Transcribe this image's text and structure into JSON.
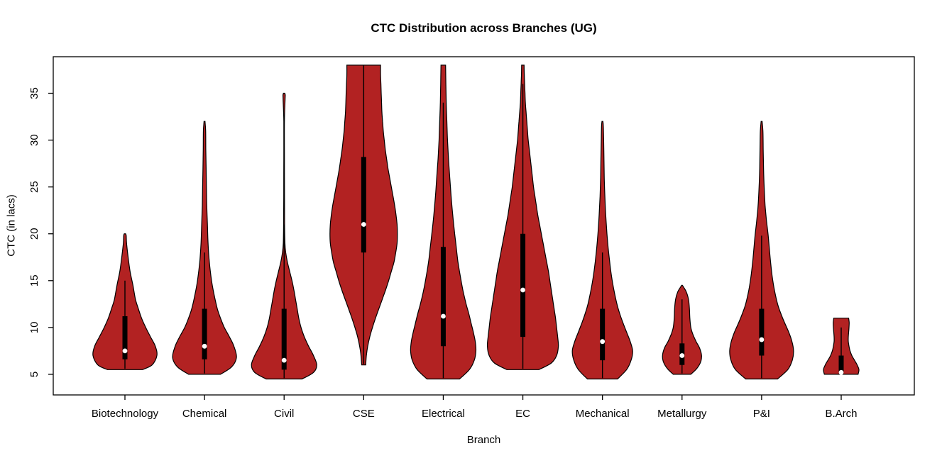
{
  "chart_data": {
    "type": "violin",
    "title": "CTC Distribution across Branches (UG)",
    "xlabel": "Branch",
    "ylabel": "CTC (in lacs)",
    "ylim": [
      2.8,
      38.9
    ],
    "yticks": [
      5,
      10,
      15,
      20,
      25,
      30,
      35
    ],
    "grid": false,
    "fill_color": "#B22222",
    "outline_color": "#000000",
    "median_dot_color": "#FFFFFF",
    "categories": [
      "Biotechnology",
      "Chemical",
      "Civil",
      "CSE",
      "Electrical",
      "EC",
      "Mechanical",
      "Metallurgy",
      "P&I",
      "B.Arch"
    ],
    "violins": [
      {
        "name": "Biotechnology",
        "min": 5.5,
        "max": 20,
        "q1": 6.6,
        "q3": 11.2,
        "median": 7.5,
        "whisker_low": 5.6,
        "whisker_high": 15,
        "width_scale": 0.9,
        "density": [
          [
            5.5,
            0.55
          ],
          [
            6,
            0.85
          ],
          [
            7,
            1.0
          ],
          [
            8,
            0.95
          ],
          [
            9,
            0.8
          ],
          [
            10,
            0.65
          ],
          [
            11,
            0.52
          ],
          [
            12,
            0.42
          ],
          [
            13,
            0.33
          ],
          [
            14.5,
            0.25
          ],
          [
            16,
            0.16
          ],
          [
            17.5,
            0.1
          ],
          [
            19,
            0.05
          ],
          [
            19.8,
            0.04
          ],
          [
            20,
            0.02
          ]
        ]
      },
      {
        "name": "Chemical",
        "min": 5,
        "max": 32,
        "q1": 6.6,
        "q3": 12,
        "median": 8,
        "whisker_low": 5.1,
        "whisker_high": 18,
        "width_scale": 0.9,
        "density": [
          [
            5,
            0.5
          ],
          [
            5.8,
            0.85
          ],
          [
            6.8,
            1.0
          ],
          [
            8,
            0.92
          ],
          [
            9,
            0.78
          ],
          [
            10,
            0.62
          ],
          [
            11,
            0.5
          ],
          [
            12,
            0.4
          ],
          [
            13.5,
            0.3
          ],
          [
            15,
            0.22
          ],
          [
            17,
            0.15
          ],
          [
            19,
            0.11
          ],
          [
            21,
            0.09
          ],
          [
            23,
            0.07
          ],
          [
            25,
            0.06
          ],
          [
            27,
            0.05
          ],
          [
            29,
            0.04
          ],
          [
            31,
            0.035
          ],
          [
            32,
            0.015
          ]
        ]
      },
      {
        "name": "Civil",
        "min": 4.5,
        "max": 35,
        "q1": 5.5,
        "q3": 12,
        "median": 6.5,
        "whisker_low": 4.6,
        "whisker_high": 21,
        "width_scale": 0.92,
        "density": [
          [
            4.5,
            0.55
          ],
          [
            5.2,
            0.9
          ],
          [
            6,
            1.0
          ],
          [
            7,
            0.9
          ],
          [
            8,
            0.75
          ],
          [
            9,
            0.62
          ],
          [
            10,
            0.52
          ],
          [
            11,
            0.45
          ],
          [
            12,
            0.4
          ],
          [
            13,
            0.35
          ],
          [
            14,
            0.3
          ],
          [
            15,
            0.24
          ],
          [
            16,
            0.17
          ],
          [
            17,
            0.1
          ],
          [
            18,
            0.05
          ],
          [
            19,
            0.025
          ],
          [
            21,
            0.015
          ],
          [
            24,
            0.012
          ],
          [
            28,
            0.01
          ],
          [
            32,
            0.01
          ],
          [
            34.3,
            0.03
          ],
          [
            34.8,
            0.035
          ],
          [
            35,
            0.02
          ]
        ]
      },
      {
        "name": "CSE",
        "min": 6,
        "max": 38,
        "q1": 18,
        "q3": 28.2,
        "median": 21,
        "whisker_low": 6.1,
        "whisker_high": 38,
        "width_scale": 0.95,
        "density": [
          [
            6,
            0.06
          ],
          [
            7,
            0.08
          ],
          [
            8,
            0.12
          ],
          [
            9,
            0.18
          ],
          [
            10,
            0.26
          ],
          [
            11,
            0.35
          ],
          [
            12,
            0.45
          ],
          [
            13,
            0.55
          ],
          [
            14,
            0.65
          ],
          [
            15,
            0.74
          ],
          [
            16,
            0.82
          ],
          [
            17,
            0.9
          ],
          [
            18,
            0.95
          ],
          [
            19,
            0.99
          ],
          [
            20,
            1.0
          ],
          [
            21,
            0.99
          ],
          [
            22,
            0.96
          ],
          [
            23,
            0.92
          ],
          [
            24,
            0.87
          ],
          [
            25,
            0.82
          ],
          [
            26,
            0.77
          ],
          [
            27,
            0.72
          ],
          [
            28,
            0.68
          ],
          [
            29,
            0.64
          ],
          [
            30,
            0.61
          ],
          [
            31,
            0.58
          ],
          [
            32,
            0.56
          ],
          [
            33,
            0.54
          ],
          [
            34,
            0.53
          ],
          [
            35,
            0.52
          ],
          [
            36,
            0.51
          ],
          [
            37,
            0.5
          ],
          [
            38,
            0.5
          ]
        ]
      },
      {
        "name": "Electrical",
        "min": 4.5,
        "max": 38,
        "q1": 8,
        "q3": 18.6,
        "median": 11.2,
        "whisker_low": 4.6,
        "whisker_high": 34,
        "width_scale": 0.92,
        "density": [
          [
            4.5,
            0.5
          ],
          [
            5.5,
            0.8
          ],
          [
            6.5,
            0.95
          ],
          [
            7.5,
            1.0
          ],
          [
            8.5,
            0.98
          ],
          [
            9.5,
            0.92
          ],
          [
            10.5,
            0.85
          ],
          [
            11.5,
            0.78
          ],
          [
            12.5,
            0.7
          ],
          [
            14,
            0.6
          ],
          [
            15.5,
            0.52
          ],
          [
            17,
            0.45
          ],
          [
            18.5,
            0.4
          ],
          [
            20,
            0.35
          ],
          [
            22,
            0.29
          ],
          [
            24,
            0.24
          ],
          [
            26,
            0.2
          ],
          [
            28,
            0.16
          ],
          [
            30,
            0.13
          ],
          [
            32,
            0.11
          ],
          [
            34,
            0.09
          ],
          [
            36,
            0.08
          ],
          [
            38,
            0.07
          ]
        ]
      },
      {
        "name": "EC",
        "min": 5.5,
        "max": 38,
        "q1": 9,
        "q3": 20,
        "median": 14,
        "whisker_low": 5.6,
        "whisker_high": 36,
        "width_scale": 1.0,
        "density": [
          [
            5.5,
            0.45
          ],
          [
            6.2,
            0.8
          ],
          [
            7,
            0.95
          ],
          [
            8,
            1.0
          ],
          [
            9,
            0.98
          ],
          [
            10,
            0.95
          ],
          [
            11,
            0.92
          ],
          [
            12,
            0.88
          ],
          [
            13,
            0.84
          ],
          [
            14,
            0.8
          ],
          [
            15,
            0.76
          ],
          [
            16,
            0.72
          ],
          [
            17,
            0.67
          ],
          [
            18,
            0.62
          ],
          [
            19,
            0.57
          ],
          [
            20,
            0.52
          ],
          [
            21,
            0.47
          ],
          [
            22,
            0.42
          ],
          [
            23,
            0.38
          ],
          [
            24,
            0.34
          ],
          [
            25,
            0.3
          ],
          [
            26,
            0.27
          ],
          [
            27,
            0.24
          ],
          [
            28,
            0.21
          ],
          [
            29,
            0.18
          ],
          [
            30,
            0.15
          ],
          [
            31,
            0.13
          ],
          [
            32,
            0.11
          ],
          [
            33,
            0.09
          ],
          [
            34,
            0.07
          ],
          [
            35,
            0.06
          ],
          [
            36,
            0.05
          ],
          [
            37,
            0.04
          ],
          [
            38,
            0.035
          ]
        ]
      },
      {
        "name": "Mechanical",
        "min": 4.5,
        "max": 32,
        "q1": 6.5,
        "q3": 12,
        "median": 8.5,
        "whisker_low": 4.6,
        "whisker_high": 18,
        "width_scale": 0.85,
        "density": [
          [
            4.5,
            0.5
          ],
          [
            5.5,
            0.8
          ],
          [
            6.5,
            0.95
          ],
          [
            7.5,
            1.0
          ],
          [
            8.5,
            0.92
          ],
          [
            9.5,
            0.8
          ],
          [
            10.5,
            0.68
          ],
          [
            11.5,
            0.57
          ],
          [
            12.5,
            0.48
          ],
          [
            14,
            0.38
          ],
          [
            15.5,
            0.3
          ],
          [
            17,
            0.24
          ],
          [
            18.5,
            0.19
          ],
          [
            20,
            0.15
          ],
          [
            22,
            0.11
          ],
          [
            24,
            0.08
          ],
          [
            26,
            0.06
          ],
          [
            28,
            0.05
          ],
          [
            30,
            0.04
          ],
          [
            31.5,
            0.03
          ],
          [
            32,
            0.015
          ]
        ]
      },
      {
        "name": "Metallurgy",
        "min": 5,
        "max": 14.5,
        "q1": 6,
        "q3": 8.3,
        "median": 7,
        "whisker_low": 5.1,
        "whisker_high": 13,
        "width_scale": 0.55,
        "density": [
          [
            5,
            0.45
          ],
          [
            5.6,
            0.75
          ],
          [
            6.3,
            0.95
          ],
          [
            7,
            1.0
          ],
          [
            7.8,
            0.9
          ],
          [
            8.5,
            0.72
          ],
          [
            9.3,
            0.55
          ],
          [
            10,
            0.45
          ],
          [
            11,
            0.4
          ],
          [
            12,
            0.38
          ],
          [
            13,
            0.33
          ],
          [
            13.8,
            0.22
          ],
          [
            14.3,
            0.08
          ],
          [
            14.5,
            0.02
          ]
        ]
      },
      {
        "name": "P&I",
        "min": 4.5,
        "max": 32,
        "q1": 7,
        "q3": 12,
        "median": 8.7,
        "whisker_low": 4.6,
        "whisker_high": 19.8,
        "width_scale": 0.9,
        "density": [
          [
            4.5,
            0.5
          ],
          [
            5.5,
            0.82
          ],
          [
            6.5,
            0.96
          ],
          [
            7.5,
            1.0
          ],
          [
            8.5,
            0.95
          ],
          [
            9.5,
            0.85
          ],
          [
            10.5,
            0.72
          ],
          [
            11.5,
            0.6
          ],
          [
            12.5,
            0.5
          ],
          [
            14,
            0.4
          ],
          [
            15.5,
            0.33
          ],
          [
            17,
            0.28
          ],
          [
            18.5,
            0.24
          ],
          [
            20,
            0.2
          ],
          [
            21.5,
            0.15
          ],
          [
            23,
            0.11
          ],
          [
            25,
            0.08
          ],
          [
            27,
            0.06
          ],
          [
            29,
            0.05
          ],
          [
            31,
            0.04
          ],
          [
            32,
            0.015
          ]
        ]
      },
      {
        "name": "B.Arch",
        "min": 5,
        "max": 11,
        "q1": 5.1,
        "q3": 7,
        "median": 5.2,
        "whisker_low": 5,
        "whisker_high": 10,
        "width_scale": 0.5,
        "density": [
          [
            5,
            0.95
          ],
          [
            5.5,
            1.0
          ],
          [
            6,
            0.9
          ],
          [
            6.5,
            0.75
          ],
          [
            7,
            0.6
          ],
          [
            7.5,
            0.5
          ],
          [
            8,
            0.44
          ],
          [
            8.5,
            0.4
          ],
          [
            9,
            0.4
          ],
          [
            9.5,
            0.42
          ],
          [
            10,
            0.44
          ],
          [
            10.5,
            0.45
          ],
          [
            11,
            0.42
          ]
        ]
      }
    ]
  }
}
